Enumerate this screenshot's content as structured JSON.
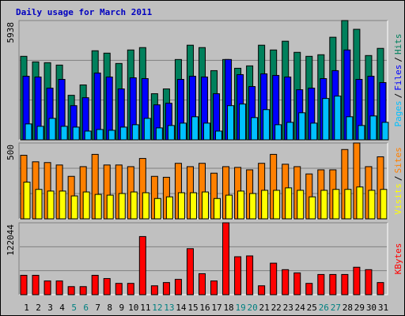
{
  "legend_separator": "/",
  "chart_data": [
    {
      "type": "bar",
      "title": "Daily usage for March 2011",
      "ylim": [
        0,
        5938
      ],
      "yticks": [
        5938
      ],
      "grid": true,
      "series": [
        {
          "name": "Hits",
          "color": "#00805c",
          "values": [
            4157,
            3880,
            3840,
            3721,
            2217,
            2732,
            4434,
            4315,
            3801,
            4473,
            4592,
            2296,
            2534,
            3998,
            4711,
            4592,
            3444,
            3998,
            3563,
            3682,
            4711,
            4473,
            4909,
            4355,
            4157,
            4236,
            5107,
            5938,
            5503,
            4196,
            4553
          ]
        },
        {
          "name": "Files",
          "color": "#0000ff",
          "values": [
            3167,
            3128,
            2573,
            3009,
            1702,
            2098,
            3326,
            3128,
            2534,
            3088,
            3048,
            1742,
            1821,
            3009,
            3167,
            3128,
            2296,
            3998,
            3246,
            2653,
            3286,
            3207,
            3128,
            2494,
            2573,
            3048,
            3444,
            4474,
            3009,
            3167,
            2850
          ]
        },
        {
          "name": "Pages",
          "color": "#00c0ff",
          "values": [
            792,
            673,
            1069,
            673,
            633,
            435,
            515,
            475,
            633,
            752,
            1069,
            594,
            713,
            831,
            1148,
            831,
            435,
            1702,
            1782,
            1108,
            1504,
            752,
            871,
            1346,
            831,
            2059,
            2177,
            1148,
            713,
            1188,
            871
          ]
        }
      ]
    },
    {
      "type": "bar",
      "ylim": [
        0,
        500
      ],
      "yticks": [
        500
      ],
      "grid": true,
      "series": [
        {
          "name": "Sites",
          "color": "#ff8000",
          "values": [
            419,
            376,
            371,
            355,
            280,
            344,
            425,
            355,
            355,
            344,
            398,
            280,
            274,
            366,
            344,
            366,
            301,
            344,
            339,
            323,
            366,
            425,
            360,
            344,
            296,
            323,
            323,
            457,
            500,
            344,
            409
          ]
        },
        {
          "name": "Visits",
          "color": "#ffff00",
          "values": [
            242,
            194,
            183,
            183,
            151,
            177,
            161,
            156,
            167,
            177,
            172,
            134,
            145,
            172,
            172,
            177,
            134,
            156,
            183,
            167,
            188,
            188,
            204,
            188,
            145,
            188,
            194,
            194,
            210,
            188,
            194
          ]
        }
      ]
    },
    {
      "type": "bar",
      "ylim": [
        0,
        122044
      ],
      "yticks": [
        122044
      ],
      "grid": true,
      "categories": [
        "1",
        "2",
        "3",
        "4",
        "5",
        "6",
        "7",
        "8",
        "9",
        "10",
        "11",
        "12",
        "13",
        "14",
        "15",
        "16",
        "17",
        "18",
        "19",
        "20",
        "21",
        "22",
        "23",
        "24",
        "25",
        "26",
        "27",
        "28",
        "29",
        "30",
        "31"
      ],
      "category_colors": [
        "#000000",
        "#000000",
        "#000000",
        "#000000",
        "#008080",
        "#008080",
        "#000000",
        "#000000",
        "#000000",
        "#000000",
        "#000000",
        "#008080",
        "#008080",
        "#000000",
        "#000000",
        "#000000",
        "#000000",
        "#000000",
        "#008080",
        "#008080",
        "#000000",
        "#000000",
        "#000000",
        "#000000",
        "#000000",
        "#008080",
        "#008080",
        "#000000",
        "#000000",
        "#000000",
        "#000000"
      ],
      "series": [
        {
          "name": "KBytes",
          "color": "#ff0000",
          "values": [
            32900,
            32900,
            23300,
            23300,
            13700,
            13700,
            32900,
            27400,
            19200,
            19200,
            98700,
            15100,
            20600,
            26000,
            78100,
            35600,
            23300,
            122044,
            64400,
            65800,
            15100,
            53500,
            42500,
            37000,
            19200,
            34300,
            34300,
            34300,
            46600,
            42500,
            20600
          ]
        }
      ]
    }
  ]
}
